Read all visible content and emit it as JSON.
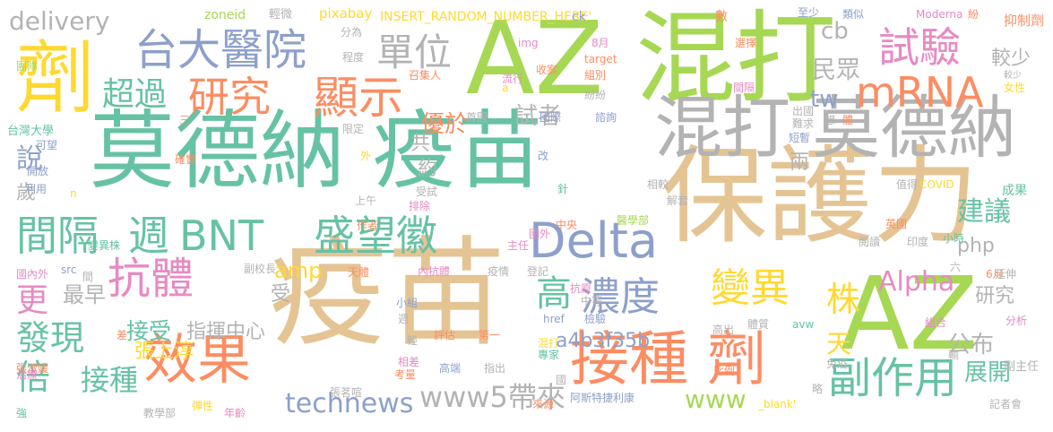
{
  "colors": {
    "green": "#66c2a5",
    "tan": "#e5c494",
    "gray": "#b3b3b3",
    "orange": "#fc8d62",
    "blue": "#8da0cb",
    "lime": "#a6d854",
    "yellow": "#ffd92f",
    "pink": "#e78ac3"
  },
  "words": [
    {
      "text": "莫德納 疫苗",
      "color": "green"
    },
    {
      "text": "疫苗",
      "color": "tan"
    },
    {
      "text": "保護力",
      "color": "tan"
    },
    {
      "text": "AZ 混打",
      "color": "lime"
    },
    {
      "text": "混打 莫德納",
      "color": "gray"
    },
    {
      "text": "AZ",
      "color": "lime"
    },
    {
      "text": "接種 劑",
      "color": "orange"
    },
    {
      "text": "劑",
      "color": "yellow"
    },
    {
      "text": "台大醫院",
      "color": "blue"
    },
    {
      "text": "Delta",
      "color": "blue"
    },
    {
      "text": "效果",
      "color": "orange"
    },
    {
      "text": "盛望徽",
      "color": "green"
    },
    {
      "text": "抗體",
      "color": "pink"
    },
    {
      "text": "顯示",
      "color": "orange"
    },
    {
      "text": "研究",
      "color": "orange"
    },
    {
      "text": "副作用",
      "color": "green"
    },
    {
      "text": "mRNA",
      "color": "orange"
    },
    {
      "text": "試驗",
      "color": "pink"
    },
    {
      "text": "變異",
      "color": "yellow"
    },
    {
      "text": "濃度",
      "color": "blue"
    },
    {
      "text": "週",
      "color": "green"
    },
    {
      "text": "BNT",
      "color": "green"
    },
    {
      "text": "間隔",
      "color": "green"
    },
    {
      "text": "單位",
      "color": "gray"
    },
    {
      "text": "超過",
      "color": "green"
    },
    {
      "text": "technews",
      "color": "blue"
    },
    {
      "text": "發現",
      "color": "green"
    },
    {
      "text": "Alpha",
      "color": "pink"
    },
    {
      "text": "株",
      "color": "yellow"
    },
    {
      "text": "倍",
      "color": "green"
    },
    {
      "text": "高",
      "color": "green"
    },
    {
      "text": "www5帶來",
      "color": "gray"
    },
    {
      "text": "接種",
      "color": "green"
    },
    {
      "text": "更",
      "color": "pink"
    },
    {
      "text": "delivery",
      "color": "gray"
    },
    {
      "text": "建議",
      "color": "green"
    },
    {
      "text": "公布",
      "color": "gray"
    },
    {
      "text": "www",
      "color": "lime"
    },
    {
      "text": "展開",
      "color": "green"
    },
    {
      "text": "接受",
      "color": "green"
    },
    {
      "text": "民眾",
      "color": "gray"
    },
    {
      "text": "cb",
      "color": "gray"
    },
    {
      "text": "tw",
      "color": "blue"
    },
    {
      "text": "amp",
      "color": "yellow"
    },
    {
      "text": "a4b3f35b",
      "color": "blue"
    },
    {
      "text": "張上淳",
      "color": "yellow"
    },
    {
      "text": "指揮中心",
      "color": "gray"
    },
    {
      "text": "優於",
      "color": "orange"
    },
    {
      "text": "最早",
      "color": "gray"
    },
    {
      "text": "說",
      "color": "blue"
    },
    {
      "text": "試者",
      "color": "gray"
    },
    {
      "text": "研究",
      "color": "gray"
    },
    {
      "text": "較少",
      "color": "gray"
    },
    {
      "text": "php",
      "color": "gray"
    },
    {
      "text": "受",
      "color": "gray"
    },
    {
      "text": "天",
      "color": "yellow"
    },
    {
      "text": "共",
      "color": "gray"
    },
    {
      "text": "歲",
      "color": "gray"
    },
    {
      "text": "約",
      "color": "gray"
    },
    {
      "text": "兩",
      "color": "gray"
    },
    {
      "text": "INSERT_RANDOM_NUMBER_HERE'",
      "color": "yellow"
    },
    {
      "text": "zoneid",
      "color": "lime"
    },
    {
      "text": "輕微",
      "color": "gray"
    },
    {
      "text": "pixabay",
      "color": "yellow"
    },
    {
      "text": "至少",
      "color": "blue"
    },
    {
      "text": "類似",
      "color": "blue"
    },
    {
      "text": "Moderna",
      "color": "pink"
    },
    {
      "text": "紛",
      "color": "orange"
    },
    {
      "text": "抑制劑",
      "color": "orange"
    },
    {
      "text": "ck",
      "color": "blue"
    },
    {
      "text": "分為",
      "color": "gray"
    },
    {
      "text": "程度",
      "color": "gray"
    },
    {
      "text": "img",
      "color": "pink"
    },
    {
      "text": "8月",
      "color": "pink"
    },
    {
      "text": "數",
      "color": "orange"
    },
    {
      "text": "選擇",
      "color": "orange"
    },
    {
      "text": "較少",
      "color": "gray"
    },
    {
      "text": "團隊",
      "color": "lime"
    },
    {
      "text": "召集人",
      "color": "orange"
    },
    {
      "text": "流行",
      "color": "pink"
    },
    {
      "text": "收案",
      "color": "orange"
    },
    {
      "text": "target",
      "color": "orange"
    },
    {
      "text": "組別",
      "color": "orange"
    },
    {
      "text": "女性",
      "color": "yellow"
    },
    {
      "text": "間隔",
      "color": "pink"
    },
    {
      "text": "台灣大學",
      "color": "green"
    },
    {
      "text": "可望",
      "color": "blue"
    },
    {
      "text": "三",
      "color": "orange"
    },
    {
      "text": "限定",
      "color": "gray"
    },
    {
      "text": "a",
      "color": "yellow"
    },
    {
      "text": "紛紛",
      "color": "gray"
    },
    {
      "text": "首圖",
      "color": "gray"
    },
    {
      "text": "國際",
      "color": "blue"
    },
    {
      "text": "諮詢",
      "color": "blue"
    },
    {
      "text": "想",
      "color": "gray"
    },
    {
      "text": "體",
      "color": "orange"
    },
    {
      "text": "出國",
      "color": "gray"
    },
    {
      "text": "難求",
      "color": "gray"
    },
    {
      "text": "短暫",
      "color": "blue"
    },
    {
      "text": "開放",
      "color": "blue"
    },
    {
      "text": "利用",
      "color": "blue"
    },
    {
      "text": "確實",
      "color": "orange"
    },
    {
      "text": "外",
      "color": "yellow"
    },
    {
      "text": "改",
      "color": "blue"
    },
    {
      "text": "n",
      "color": "yellow"
    },
    {
      "text": "上午",
      "color": "gray"
    },
    {
      "text": "受試",
      "color": "gray"
    },
    {
      "text": "排除",
      "color": "pink"
    },
    {
      "text": "針",
      "color": "green"
    },
    {
      "text": "相較",
      "color": "gray"
    },
    {
      "text": "解套",
      "color": "gray"
    },
    {
      "text": "值得",
      "color": "gray"
    },
    {
      "text": "COVID",
      "color": "yellow"
    },
    {
      "text": "成果",
      "color": "green"
    },
    {
      "text": "作者",
      "color": "orange"
    },
    {
      "text": "國外",
      "color": "pink"
    },
    {
      "text": "中央",
      "color": "orange"
    },
    {
      "text": "醫學部",
      "color": "lime"
    },
    {
      "text": "英國",
      "color": "orange"
    },
    {
      "text": "小時",
      "color": "green"
    },
    {
      "text": "變異株",
      "color": "green"
    },
    {
      "text": "主任",
      "color": "pink"
    },
    {
      "text": "閱讀",
      "color": "gray"
    },
    {
      "text": "印度",
      "color": "gray"
    },
    {
      "text": "國內外",
      "color": "pink"
    },
    {
      "text": "src",
      "color": "blue"
    },
    {
      "text": "副校長",
      "color": "gray"
    },
    {
      "text": "六",
      "color": "gray"
    },
    {
      "text": "間",
      "color": "gray"
    },
    {
      "text": "天體",
      "color": "orange"
    },
    {
      "text": "內抗體",
      "color": "pink"
    },
    {
      "text": "疫情",
      "color": "gray"
    },
    {
      "text": "登記",
      "color": "gray"
    },
    {
      "text": "6月",
      "color": "orange"
    },
    {
      "text": "延伸",
      "color": "gray"
    },
    {
      "text": "抗原",
      "color": "pink"
    },
    {
      "text": "中等",
      "color": "gray"
    },
    {
      "text": "小組",
      "color": "blue"
    },
    {
      "text": "週",
      "color": "gray"
    },
    {
      "text": "href",
      "color": "blue"
    },
    {
      "text": "檢驗",
      "color": "blue"
    },
    {
      "text": "高出",
      "color": "gray"
    },
    {
      "text": "體質",
      "color": "gray"
    },
    {
      "text": "avw",
      "color": "green"
    },
    {
      "text": "組合",
      "color": "pink"
    },
    {
      "text": "分析",
      "color": "pink"
    },
    {
      "text": "評估",
      "color": "orange"
    },
    {
      "text": "第一",
      "color": "orange"
    },
    {
      "text": "差",
      "color": "orange"
    },
    {
      "text": "輕",
      "color": "gray"
    },
    {
      "text": "混打",
      "color": "yellow"
    },
    {
      "text": "輸",
      "color": "gray"
    },
    {
      "text": "張淑媛",
      "color": "orange"
    },
    {
      "text": "相差",
      "color": "pink"
    },
    {
      "text": "考量",
      "color": "orange"
    },
    {
      "text": "高端",
      "color": "blue"
    },
    {
      "text": "指出",
      "color": "gray"
    },
    {
      "text": "專家",
      "color": "green"
    },
    {
      "text": "比例",
      "color": "orange"
    },
    {
      "text": "免疫",
      "color": "gray"
    },
    {
      "text": "副主任",
      "color": "gray"
    },
    {
      "text": "治療",
      "color": "pink"
    },
    {
      "text": "張茗喧",
      "color": "gray"
    },
    {
      "text": "國",
      "color": "gray"
    },
    {
      "text": "阿斯特捷利康",
      "color": "blue"
    },
    {
      "text": "略",
      "color": "gray"
    },
    {
      "text": "強",
      "color": "green"
    },
    {
      "text": "教學部",
      "color": "gray"
    },
    {
      "text": "彈性",
      "color": "yellow"
    },
    {
      "text": "年齡",
      "color": "pink"
    },
    {
      "text": "來源",
      "color": "orange"
    },
    {
      "text": "_blank'",
      "color": "yellow"
    },
    {
      "text": "記者會",
      "color": "gray"
    }
  ]
}
